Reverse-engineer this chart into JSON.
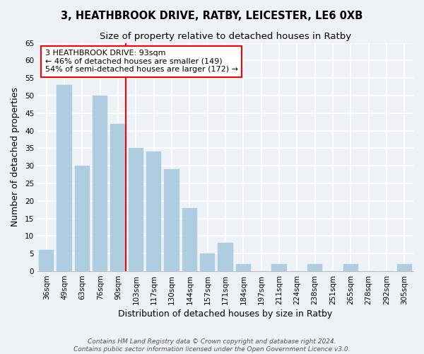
{
  "title": "3, HEATHBROOK DRIVE, RATBY, LEICESTER, LE6 0XB",
  "subtitle": "Size of property relative to detached houses in Ratby",
  "xlabel": "Distribution of detached houses by size in Ratby",
  "ylabel": "Number of detached properties",
  "bar_labels": [
    "36sqm",
    "49sqm",
    "63sqm",
    "76sqm",
    "90sqm",
    "103sqm",
    "117sqm",
    "130sqm",
    "144sqm",
    "157sqm",
    "171sqm",
    "184sqm",
    "197sqm",
    "211sqm",
    "224sqm",
    "238sqm",
    "251sqm",
    "265sqm",
    "278sqm",
    "292sqm",
    "305sqm"
  ],
  "bar_values": [
    6,
    53,
    30,
    50,
    42,
    35,
    34,
    29,
    18,
    5,
    8,
    2,
    0,
    2,
    0,
    2,
    0,
    2,
    0,
    0,
    2
  ],
  "bar_color": "#aecde1",
  "bar_edge_color": "#aecde1",
  "highlight_line_color": "red",
  "annotation_text": "3 HEATHBROOK DRIVE: 93sqm\n← 46% of detached houses are smaller (149)\n54% of semi-detached houses are larger (172) →",
  "annotation_box_color": "white",
  "annotation_box_edge_color": "red",
  "ylim": [
    0,
    65
  ],
  "yticks": [
    0,
    5,
    10,
    15,
    20,
    25,
    30,
    35,
    40,
    45,
    50,
    55,
    60,
    65
  ],
  "footer_line1": "Contains HM Land Registry data © Crown copyright and database right 2024.",
  "footer_line2": "Contains public sector information licensed under the Open Government Licence v3.0.",
  "background_color": "#eef2f7",
  "grid_color": "white",
  "title_fontsize": 10.5,
  "subtitle_fontsize": 9.5,
  "axis_label_fontsize": 9,
  "tick_fontsize": 7.5,
  "annotation_fontsize": 8,
  "footer_fontsize": 6.5
}
